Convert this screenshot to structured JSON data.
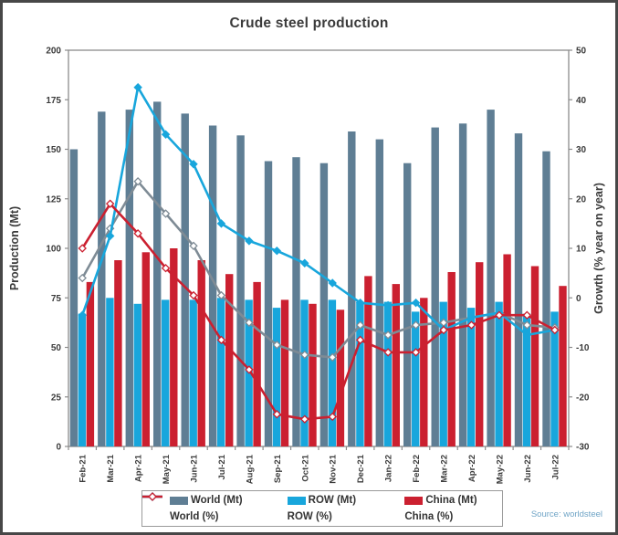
{
  "chart_data": {
    "type": "bar+line",
    "title": "Crude steel production",
    "source": "Source: worldsteel",
    "grid": false,
    "legend_position": "bottom",
    "categories": [
      "Feb-21",
      "Mar-21",
      "Apr-21",
      "May-21",
      "Jun-21",
      "Jul-21",
      "Aug-21",
      "Sep-21",
      "Oct-21",
      "Nov-21",
      "Dec-21",
      "Jan-22",
      "Feb-22",
      "Mar-22",
      "Apr-22",
      "May-22",
      "Jun-22",
      "Jul-22"
    ],
    "y_left": {
      "label": "Production (Mt)",
      "min": 0,
      "max": 200,
      "step": 25
    },
    "y_right": {
      "label": "Growth (% year on year)",
      "min": -30,
      "max": 50,
      "step": 10
    },
    "bar_series": [
      {
        "name": "World (Mt)",
        "axis": "left",
        "color": "#5f7e94",
        "values": [
          150,
          169,
          170,
          174,
          168,
          162,
          157,
          144,
          146,
          143,
          159,
          155,
          143,
          161,
          163,
          170,
          158,
          149
        ]
      },
      {
        "name": "ROW (Mt)",
        "axis": "left",
        "color": "#18a6dc",
        "values": [
          67,
          75,
          72,
          74,
          74,
          75,
          74,
          70,
          74,
          74,
          73,
          73,
          68,
          73,
          70,
          73,
          67,
          68
        ]
      },
      {
        "name": "China (Mt)",
        "axis": "left",
        "color": "#cb2030",
        "values": [
          83,
          94,
          98,
          100,
          94,
          87,
          83,
          74,
          72,
          69,
          86,
          82,
          75,
          88,
          93,
          97,
          91,
          81
        ]
      }
    ],
    "line_series": [
      {
        "name": "World (%)",
        "axis": "right",
        "color": "#7e8b95",
        "marker": "open-diamond",
        "values": [
          4,
          14,
          23.5,
          17,
          10.5,
          0.5,
          -5,
          -9.5,
          -11.5,
          -12,
          -5.5,
          -7.5,
          -5.5,
          -5,
          -4,
          -3,
          -5.5,
          -6
        ]
      },
      {
        "name": "ROW (%)",
        "axis": "right",
        "color": "#18a6dc",
        "marker": "solid-diamond",
        "values": [
          -3.5,
          12.5,
          42.5,
          33,
          27,
          15,
          11.5,
          9.5,
          7,
          3,
          -1,
          -1.5,
          -1,
          -6.5,
          -4,
          -3,
          -7.5,
          -6.5
        ]
      },
      {
        "name": "China (%)",
        "axis": "right",
        "color": "#cb2030",
        "marker": "open-diamond",
        "values": [
          10,
          19,
          13,
          6,
          0.5,
          -8.5,
          -14.5,
          -23.5,
          -24.5,
          -24,
          -8.5,
          -11,
          -11,
          -6.5,
          -5.5,
          -3.5,
          -3.5,
          -6.5
        ]
      }
    ],
    "axis_text_color": "#3b3b3b",
    "plot_border_color": "#8c8c8c"
  }
}
